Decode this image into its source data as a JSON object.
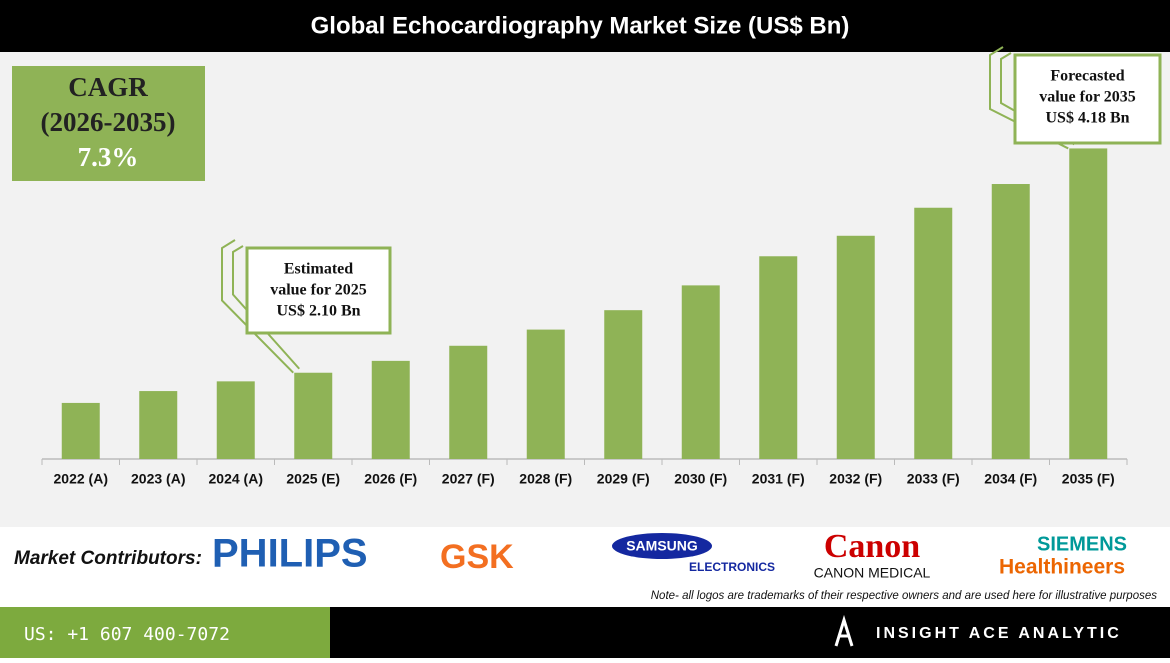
{
  "header": {
    "title": "Global Echocardiography Market Size (US$ Bn)"
  },
  "chart_data": {
    "type": "bar",
    "categories": [
      "2022 (A)",
      "2023 (A)",
      "2024 (A)",
      "2025 (E)",
      "2026 (F)",
      "2027 (F)",
      "2028 (F)",
      "2029 (F)",
      "2030 (F)",
      "2031 (F)",
      "2032 (F)",
      "2033 (F)",
      "2034 (F)",
      "2035 (F)"
    ],
    "values": [
      1.82,
      1.93,
      2.02,
      2.1,
      2.21,
      2.35,
      2.5,
      2.68,
      2.91,
      3.18,
      3.37,
      3.63,
      3.85,
      4.18
    ],
    "value_labels": [
      null,
      null,
      null,
      "US$ 2.10 Bn",
      null,
      null,
      null,
      null,
      null,
      null,
      null,
      null,
      null,
      "US$ 4.18 Bn"
    ],
    "callouts": [
      [
        "Estimated",
        "value for 2025"
      ],
      [
        "Forecasted",
        "value for 2035"
      ]
    ],
    "color": "#8fb356",
    "ylim": [
      1.3,
      5.0
    ]
  },
  "cagr": {
    "label": "CAGR",
    "period": "(2026-2035)",
    "value": "7.3%"
  },
  "contributors": {
    "label": "Market Contributors:",
    "logos": [
      "PHILIPS",
      "GSK",
      "SAMSUNG",
      "ELECTRONICS",
      "Canon",
      "CANON MEDICAL",
      "SIEMENS",
      "Healthineers"
    ],
    "note": "Note- all logos are trademarks of their respective owners and are used here for illustrative purposes"
  },
  "footer": {
    "phone": "US: +1 607 400-7072",
    "brand": "INSIGHT ACE ANALYTIC"
  }
}
